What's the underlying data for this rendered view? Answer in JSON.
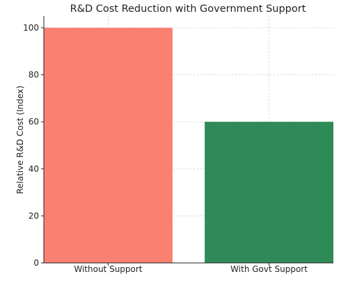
{
  "chart_data": {
    "type": "bar",
    "title": "R&D Cost Reduction with Government Support",
    "xlabel": "",
    "ylabel": "Relative R&D Cost (Index)",
    "categories": [
      "Without Support",
      "With Govt Support"
    ],
    "values": [
      100,
      60
    ],
    "colors": [
      "#fa8072",
      "#2e8b57"
    ],
    "ylim": [
      0,
      105
    ],
    "yticks": [
      0,
      20,
      40,
      60,
      80,
      100
    ],
    "grid": true,
    "legend": "none"
  }
}
